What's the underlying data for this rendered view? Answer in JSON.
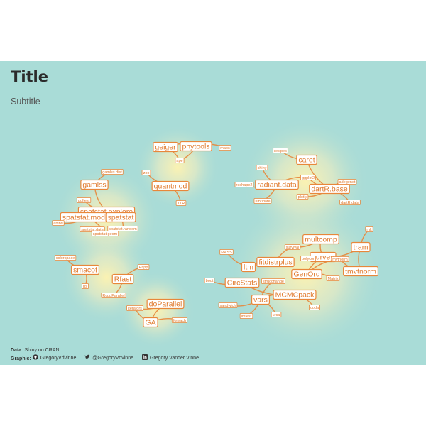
{
  "header": {
    "title": "Title",
    "subtitle": "Subtitle"
  },
  "caption": {
    "data_label": "Data:",
    "data_value": "Shiny",
    "data_suffix": "on CRAN",
    "graphic_label": "Graphic:",
    "github": "GregoryVdvinne",
    "twitter": "@GregoryVdvinne",
    "linkedin": "Gregory Vander Vinne",
    "icons": [
      "github-icon",
      "twitter-icon",
      "linkedin-icon"
    ]
  },
  "colors": {
    "background": "#a9dcd7",
    "accent": "#e8873a",
    "glow": "#fff3b0"
  },
  "graph": {
    "nodes": [
      {
        "id": "gamlss",
        "label": "gamlss",
        "size": "big"
      },
      {
        "id": "gamlss_dist",
        "label": "gamlss.dist",
        "size": "small"
      },
      {
        "id": "spatstat_explore",
        "label": "spatstat.explore",
        "size": "big"
      },
      {
        "id": "spatstat_model",
        "label": "spatstat.model",
        "size": "big"
      },
      {
        "id": "spatstat",
        "label": "spatstat",
        "size": "big"
      },
      {
        "id": "spatstat_data",
        "label": "spatstat.data",
        "size": "small"
      },
      {
        "id": "spatstat_random",
        "label": "spatstat.random",
        "size": "small"
      },
      {
        "id": "spatstat_geom",
        "label": "spatstat.geom",
        "size": "small"
      },
      {
        "id": "goftest",
        "label": "goftest",
        "size": "small"
      },
      {
        "id": "abind",
        "label": "abind",
        "size": "small"
      },
      {
        "id": "geiger",
        "label": "geiger",
        "size": "big"
      },
      {
        "id": "phytools",
        "label": "phytools",
        "size": "big"
      },
      {
        "id": "ape",
        "label": "ape",
        "size": "small"
      },
      {
        "id": "maps",
        "label": "maps",
        "size": "small"
      },
      {
        "id": "quantmod",
        "label": "quantmod",
        "size": "big"
      },
      {
        "id": "zoo",
        "label": "zoo",
        "size": "small"
      },
      {
        "id": "ttr",
        "label": "TTR",
        "size": "small"
      },
      {
        "id": "caret",
        "label": "caret",
        "size": "big"
      },
      {
        "id": "recipes",
        "label": "recipes",
        "size": "small"
      },
      {
        "id": "radiant_data",
        "label": "radiant.data",
        "size": "big"
      },
      {
        "id": "dartr_base",
        "label": "dartR.base",
        "size": "big"
      },
      {
        "id": "shiny",
        "label": "shiny",
        "size": "small"
      },
      {
        "id": "ggplot2",
        "label": "ggplot2",
        "size": "small"
      },
      {
        "id": "reshape2",
        "label": "reshape2",
        "size": "small"
      },
      {
        "id": "lubridate",
        "label": "lubridate",
        "size": "small"
      },
      {
        "id": "plotly",
        "label": "plotly",
        "size": "small"
      },
      {
        "id": "adegenet",
        "label": "adegenet",
        "size": "small"
      },
      {
        "id": "dartr_data",
        "label": "dartR.data",
        "size": "small"
      },
      {
        "id": "colorspace",
        "label": "colorspace",
        "size": "small"
      },
      {
        "id": "smacof",
        "label": "smacof",
        "size": "big"
      },
      {
        "id": "rgl",
        "label": "rgl",
        "size": "small"
      },
      {
        "id": "rfast",
        "label": "Rfast",
        "size": "big"
      },
      {
        "id": "rcpp",
        "label": "Rcpp",
        "size": "small"
      },
      {
        "id": "rcppparallel",
        "label": "RcppParallel",
        "size": "small"
      },
      {
        "id": "doparallel",
        "label": "doParallel",
        "size": "big"
      },
      {
        "id": "iterators",
        "label": "iterators",
        "size": "small"
      },
      {
        "id": "ga",
        "label": "GA",
        "size": "big"
      },
      {
        "id": "foreach",
        "label": "foreach",
        "size": "small"
      },
      {
        "id": "multcomp",
        "label": "multcomp",
        "size": "big"
      },
      {
        "id": "survey",
        "label": "survey",
        "size": "big"
      },
      {
        "id": "tram",
        "label": "tram",
        "size": "big"
      },
      {
        "id": "mlt",
        "label": "mlt",
        "size": "small"
      },
      {
        "id": "fitdistrplus",
        "label": "fitdistrplus",
        "size": "big"
      },
      {
        "id": "ltm",
        "label": "ltm",
        "size": "big"
      },
      {
        "id": "genord",
        "label": "GenOrd",
        "size": "big"
      },
      {
        "id": "tmvtnorm",
        "label": "tmvtnorm",
        "size": "big"
      },
      {
        "id": "circstats",
        "label": "CircStats",
        "size": "big"
      },
      {
        "id": "mcmcpack",
        "label": "MCMCpack",
        "size": "big"
      },
      {
        "id": "vars",
        "label": "vars",
        "size": "big"
      },
      {
        "id": "mass",
        "label": "MASS",
        "size": "small"
      },
      {
        "id": "survival",
        "label": "survival",
        "size": "small"
      },
      {
        "id": "mvtnorm",
        "label": "mvtnorm",
        "size": "small"
      },
      {
        "id": "boot",
        "label": "boot",
        "size": "small"
      },
      {
        "id": "sandwich",
        "label": "sandwich",
        "size": "small"
      },
      {
        "id": "coda",
        "label": "coda",
        "size": "small"
      },
      {
        "id": "lmtest",
        "label": "lmtest",
        "size": "small"
      },
      {
        "id": "urca",
        "label": "urca",
        "size": "small"
      },
      {
        "id": "strucchange",
        "label": "strucchange",
        "size": "small"
      },
      {
        "id": "matrix",
        "label": "Matrix",
        "size": "small"
      },
      {
        "id": "polycor",
        "label": "polycor",
        "size": "small"
      }
    ],
    "edges": [
      [
        "gamlss_dist",
        "gamlss"
      ],
      [
        "goftest",
        "spatstat_explore"
      ],
      [
        "gamlss",
        "spatstat_explore"
      ],
      [
        "spatstat_explore",
        "spatstat_model"
      ],
      [
        "spatstat_model",
        "spatstat"
      ],
      [
        "abind",
        "spatstat_model"
      ],
      [
        "spatstat_data",
        "spatstat_geom"
      ],
      [
        "spatstat_random",
        "spatstat"
      ],
      [
        "spatstat_geom",
        "spatstat_model"
      ],
      [
        "ape",
        "geiger"
      ],
      [
        "phytools",
        "geiger"
      ],
      [
        "maps",
        "phytools"
      ],
      [
        "ape",
        "phytools"
      ],
      [
        "zoo",
        "quantmod"
      ],
      [
        "ttr",
        "quantmod"
      ],
      [
        "recipes",
        "caret"
      ],
      [
        "caret",
        "dartr_base"
      ],
      [
        "shiny",
        "radiant_data"
      ],
      [
        "ggplot2",
        "radiant_data"
      ],
      [
        "reshape2",
        "radiant_data"
      ],
      [
        "lubridate",
        "radiant_data"
      ],
      [
        "plotly",
        "dartr_base"
      ],
      [
        "adegenet",
        "dartr_base"
      ],
      [
        "dartr_data",
        "dartr_base"
      ],
      [
        "ggplot2",
        "dartr_base"
      ],
      [
        "colorspace",
        "smacof"
      ],
      [
        "rgl",
        "smacof"
      ],
      [
        "rcpp",
        "rfast"
      ],
      [
        "rcppparallel",
        "rfast"
      ],
      [
        "iterators",
        "doparallel"
      ],
      [
        "doparallel",
        "ga"
      ],
      [
        "foreach",
        "ga"
      ],
      [
        "iterators",
        "ga"
      ],
      [
        "survival",
        "multcomp"
      ],
      [
        "multcomp",
        "survey"
      ],
      [
        "mlt",
        "tram"
      ],
      [
        "survey",
        "tram"
      ],
      [
        "survey",
        "genord"
      ],
      [
        "tram",
        "tmvtnorm"
      ],
      [
        "mvtnorm",
        "tmvtnorm"
      ],
      [
        "mass",
        "ltm"
      ],
      [
        "fitdistrplus",
        "ltm"
      ],
      [
        "survival",
        "fitdistrplus"
      ],
      [
        "boot",
        "circstats"
      ],
      [
        "circstats",
        "mcmcpack"
      ],
      [
        "mcmcpack",
        "vars"
      ],
      [
        "sandwich",
        "vars"
      ],
      [
        "coda",
        "mcmcpack"
      ],
      [
        "lmtest",
        "vars"
      ],
      [
        "urca",
        "vars"
      ],
      [
        "strucchange",
        "vars"
      ],
      [
        "matrix",
        "genord"
      ],
      [
        "polycor",
        "survey"
      ],
      [
        "mvtnorm",
        "genord"
      ]
    ]
  }
}
